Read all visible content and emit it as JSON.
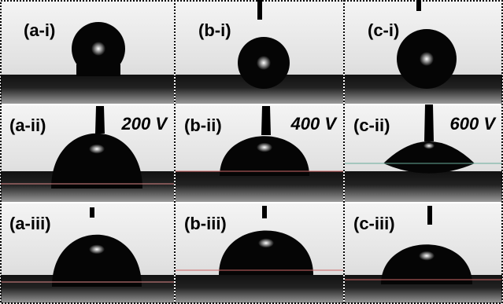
{
  "columns": [
    {
      "voltage": "200 V",
      "panels": [
        "(a-i)",
        "(a-ii)",
        "(a-iii)"
      ]
    },
    {
      "voltage": "400 V",
      "panels": [
        "(b-i)",
        "(b-ii)",
        "(b-iii)"
      ]
    },
    {
      "voltage": "600 V",
      "panels": [
        "(c-i)",
        "(c-ii)",
        "(c-iii)"
      ]
    }
  ]
}
